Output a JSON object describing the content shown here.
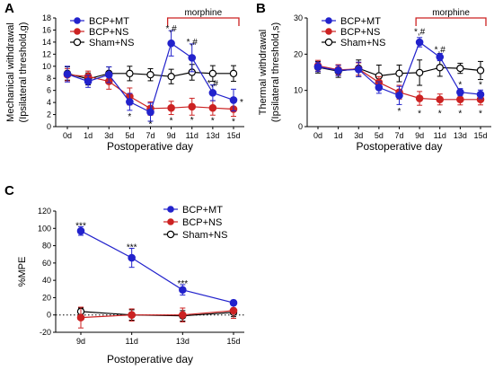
{
  "panels": {
    "a": "A",
    "b": "B",
    "c": "C"
  },
  "chart_data": [
    {
      "id": "A",
      "type": "line",
      "x": [
        "0d",
        "1d",
        "3d",
        "5d",
        "7d",
        "9d",
        "11d",
        "13d",
        "15d"
      ],
      "xlabel": "Postoperative day",
      "ylabel": [
        "Mechanical withdrawal",
        "(Ipsilateral threshold,g)"
      ],
      "ylim": [
        0,
        18
      ],
      "yticks": [
        0,
        2,
        4,
        6,
        8,
        10,
        12,
        14,
        16,
        18
      ],
      "bracket": {
        "label": "morphine",
        "from": "9d",
        "to": "15d"
      },
      "legend": "top-left",
      "series": [
        {
          "name": "BCP+MT",
          "color": "#2222cc",
          "marker": "filled-circle",
          "values": [
            8.7,
            7.5,
            8.6,
            4.1,
            2.4,
            13.8,
            11.4,
            5.6,
            4.4
          ],
          "err": [
            1.3,
            1.0,
            1.3,
            1.4,
            1.5,
            2.1,
            2.3,
            1.3,
            1.8
          ]
        },
        {
          "name": "BCP+NS",
          "color": "#cc2222",
          "marker": "filled-circle",
          "values": [
            8.6,
            8.3,
            7.5,
            5.0,
            3.0,
            3.1,
            3.3,
            3.1,
            2.9
          ],
          "err": [
            1.0,
            0.9,
            1.3,
            1.4,
            1.1,
            1.1,
            1.4,
            1.2,
            1.2
          ]
        },
        {
          "name": "Sham+NS",
          "color": "#000000",
          "marker": "open-circle",
          "values": [
            8.8,
            7.9,
            8.8,
            8.8,
            8.6,
            8.3,
            9.0,
            8.8,
            8.8
          ],
          "err": [
            1.1,
            1.0,
            1.1,
            1.2,
            1.0,
            1.2,
            1.3,
            1.3,
            1.3
          ]
        }
      ],
      "annotations": [
        {
          "x": "5d",
          "y": 1.8,
          "text": "*"
        },
        {
          "x": "7d",
          "y": 0.5,
          "text": "*"
        },
        {
          "x": "9d",
          "y": 1.1,
          "text": "*"
        },
        {
          "x": "11d",
          "y": 1.2,
          "text": "*"
        },
        {
          "x": "13d",
          "y": 1.1,
          "text": "*"
        },
        {
          "x": "15d",
          "y": 1.0,
          "text": "*"
        },
        {
          "x": "9d",
          "y": 16.4,
          "text": "*,#"
        },
        {
          "x": "11d",
          "y": 14.1,
          "text": "*,#"
        },
        {
          "x": "13d",
          "y": 7.3,
          "text": "*,#"
        },
        {
          "x": "15d",
          "y": 4.2,
          "text": "*",
          "dx": 9
        }
      ]
    },
    {
      "id": "B",
      "type": "line",
      "x": [
        "0d",
        "1d",
        "3d",
        "5d",
        "7d",
        "9d",
        "11d",
        "13d",
        "15d"
      ],
      "xlabel": "Postoperative day",
      "ylabel": [
        "Thermal withdrawal",
        "(Ipsilateral threshold,s)"
      ],
      "ylim": [
        0,
        30
      ],
      "yticks": [
        0,
        10,
        20,
        30
      ],
      "bracket": {
        "label": "morphine",
        "from": "9d",
        "to": "15d"
      },
      "legend": "top-left",
      "series": [
        {
          "name": "BCP+MT",
          "color": "#2222cc",
          "marker": "filled-circle",
          "values": [
            16.5,
            15.5,
            15.8,
            10.8,
            8.6,
            23.3,
            19.2,
            9.5,
            8.9
          ],
          "err": [
            1.3,
            1.4,
            2.0,
            1.6,
            2.5,
            1.3,
            1.0,
            1.0,
            1.2
          ]
        },
        {
          "name": "BCP+NS",
          "color": "#cc2222",
          "marker": "filled-circle",
          "values": [
            16.8,
            15.7,
            15.9,
            12.2,
            9.5,
            7.8,
            7.5,
            7.5,
            7.5
          ],
          "err": [
            1.5,
            1.4,
            1.7,
            1.6,
            1.9,
            1.9,
            1.5,
            1.5,
            1.5
          ]
        },
        {
          "name": "Sham+NS",
          "color": "#000000",
          "marker": "open-circle",
          "values": [
            16.4,
            15.3,
            16.1,
            14.0,
            14.7,
            14.9,
            16.3,
            16.1,
            15.5
          ],
          "err": [
            1.6,
            1.7,
            2.3,
            3.0,
            2.3,
            3.5,
            2.4,
            1.4,
            2.5
          ]
        }
      ],
      "annotations": [
        {
          "x": "7d",
          "y": 4.5,
          "text": "*"
        },
        {
          "x": "9d",
          "y": 3.8,
          "text": "*"
        },
        {
          "x": "11d",
          "y": 3.8,
          "text": "*"
        },
        {
          "x": "13d",
          "y": 3.8,
          "text": "*"
        },
        {
          "x": "15d",
          "y": 3.8,
          "text": "*"
        },
        {
          "x": "9d",
          "y": 26.4,
          "text": "*,#"
        },
        {
          "x": "11d",
          "y": 21.4,
          "text": "*,#"
        },
        {
          "x": "13d",
          "y": 11.8,
          "text": "*"
        },
        {
          "x": "15d",
          "y": 11.8,
          "text": "*"
        }
      ]
    },
    {
      "id": "C",
      "type": "line",
      "x": [
        "9d",
        "11d",
        "13d",
        "15d"
      ],
      "xlabel": "Postoperative day",
      "ylabel": [
        "%MPE"
      ],
      "ylim": [
        -20,
        120
      ],
      "yticks": [
        -20,
        0,
        20,
        40,
        60,
        80,
        100,
        120
      ],
      "zero_line": "dotted",
      "legend": "top-right",
      "series": [
        {
          "name": "BCP+MT",
          "color": "#2222cc",
          "marker": "filled-circle",
          "values": [
            97,
            66,
            29,
            14
          ],
          "err": [
            5,
            11,
            6,
            3
          ]
        },
        {
          "name": "BCP+NS",
          "color": "#cc2222",
          "marker": "filled-circle",
          "values": [
            -3,
            0,
            0,
            5
          ],
          "err": [
            12,
            7,
            8,
            9
          ]
        },
        {
          "name": "Sham+NS",
          "color": "#000000",
          "marker": "open-circle",
          "values": [
            4,
            0,
            -1,
            3
          ],
          "err": [
            4,
            6,
            6,
            5
          ]
        }
      ],
      "annotations": [
        {
          "x": "9d",
          "y": 104,
          "text": "***"
        },
        {
          "x": "11d",
          "y": 79,
          "text": "***"
        },
        {
          "x": "13d",
          "y": 37,
          "text": "***"
        }
      ]
    }
  ]
}
